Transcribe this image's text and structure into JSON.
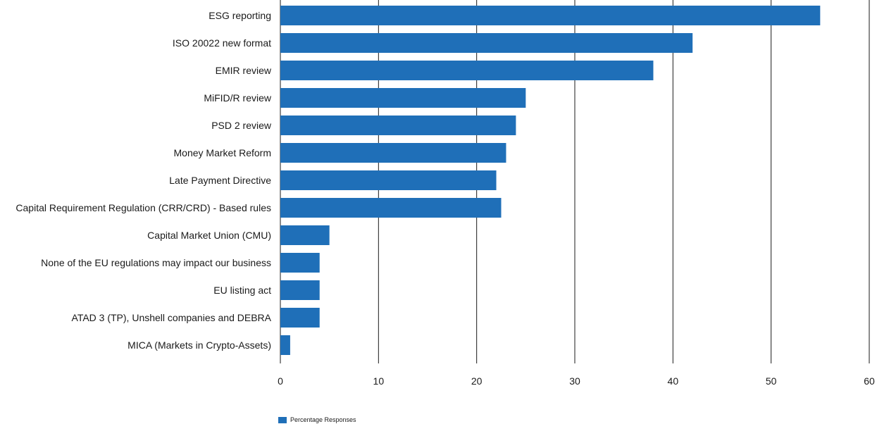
{
  "chart_data": {
    "type": "bar",
    "orientation": "horizontal",
    "categories": [
      "ESG reporting",
      "ISO 20022 new format",
      "EMIR review",
      "MiFID/R review",
      "PSD 2 review",
      "Money Market Reform",
      "Late Payment Directive",
      "Capital Requirement Regulation (CRR/CRD) - Based rules",
      "Capital Market Union (CMU)",
      "None of the EU regulations may impact our business",
      "EU listing act",
      "ATAD 3 (TP), Unshell companies and DEBRA",
      "MICA (Markets in Crypto-Assets)"
    ],
    "series": [
      {
        "name": "Percentage Responses",
        "values": [
          55,
          42,
          38,
          25,
          24,
          23,
          22,
          22.5,
          5,
          4,
          4,
          4,
          1
        ]
      }
    ],
    "xlim": [
      0,
      60
    ],
    "xticks": [
      "0",
      "10",
      "20",
      "30",
      "40",
      "50",
      "60"
    ],
    "grid": "vertical",
    "legend_position": "bottom-left",
    "bar_color": "#1f6fb8",
    "grid_color": "#1a1a1a"
  }
}
